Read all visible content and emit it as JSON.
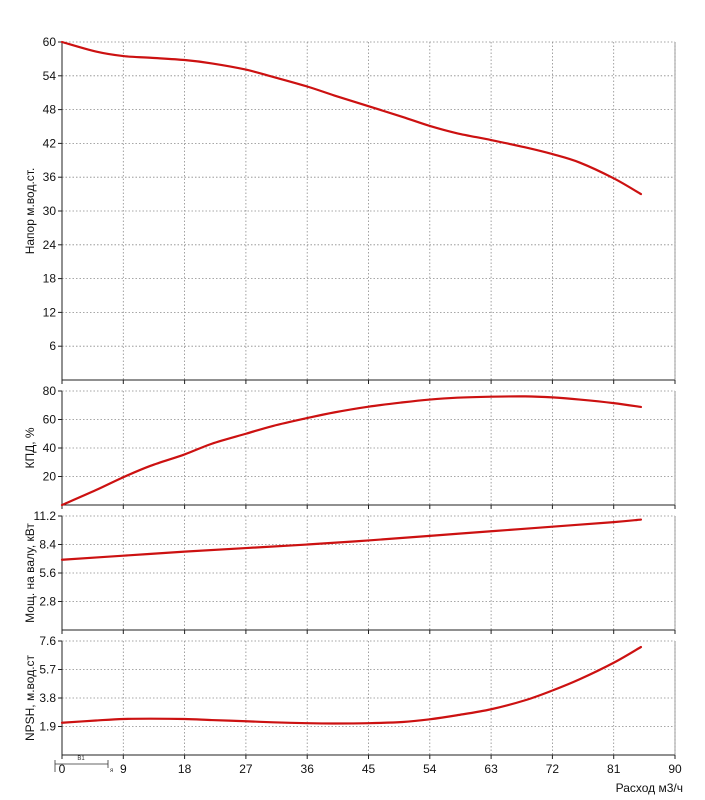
{
  "chart_data": [
    {
      "type": "line",
      "ylabel": "Напор м.вод.ст.",
      "xlabel": "",
      "xlim": [
        0,
        90
      ],
      "ylim": [
        0,
        60
      ],
      "yticks": [
        6,
        12,
        18,
        24,
        30,
        36,
        42,
        48,
        54,
        60
      ],
      "grid": true,
      "color": "#cc1111",
      "series": [
        {
          "x": [
            0,
            5,
            9,
            13,
            18,
            22,
            27,
            31,
            36,
            40,
            45,
            50,
            54,
            58,
            63,
            68,
            72,
            76,
            81,
            85
          ],
          "y": [
            60,
            58.3,
            57.5,
            57.2,
            56.8,
            56.2,
            55.1,
            53.8,
            52.1,
            50.5,
            48.6,
            46.7,
            45.1,
            43.8,
            42.6,
            41.3,
            40.1,
            38.6,
            35.8,
            33.0
          ]
        }
      ]
    },
    {
      "type": "line",
      "ylabel": "КПД, %",
      "xlabel": "",
      "xlim": [
        0,
        90
      ],
      "ylim": [
        0,
        80
      ],
      "yticks": [
        20,
        40,
        60,
        80
      ],
      "grid": true,
      "color": "#cc1111",
      "series": [
        {
          "x": [
            0,
            5,
            9,
            13,
            18,
            22,
            27,
            31,
            36,
            40,
            45,
            50,
            54,
            58,
            63,
            68,
            72,
            76,
            81,
            85
          ],
          "y": [
            0,
            10.5,
            19.5,
            27.5,
            35.5,
            43,
            50,
            55.5,
            61,
            65,
            69,
            72,
            74,
            75.3,
            76,
            76.2,
            75.5,
            74,
            71.5,
            68.8
          ]
        }
      ]
    },
    {
      "type": "line",
      "ylabel": "Мощ. на валу, кВт",
      "xlabel": "",
      "xlim": [
        0,
        90
      ],
      "ylim": [
        0,
        11.2
      ],
      "yticks": [
        2.8,
        5.6,
        8.4,
        11.2
      ],
      "grid": true,
      "color": "#cc1111",
      "series": [
        {
          "x": [
            0,
            9,
            18,
            27,
            36,
            45,
            54,
            63,
            72,
            81,
            85
          ],
          "y": [
            6.9,
            7.3,
            7.7,
            8.05,
            8.4,
            8.8,
            9.25,
            9.7,
            10.15,
            10.6,
            10.85
          ]
        }
      ]
    },
    {
      "type": "line",
      "ylabel": "NPSH, м.вод.ст",
      "xlabel": "Расход м3/ч",
      "xlim": [
        0,
        90
      ],
      "ylim": [
        0,
        7.6
      ],
      "yticks": [
        1.9,
        3.8,
        5.7,
        7.6
      ],
      "xticks": [
        0,
        9,
        18,
        27,
        36,
        45,
        54,
        63,
        72,
        81,
        90
      ],
      "grid": true,
      "color": "#cc1111",
      "series": [
        {
          "x": [
            0,
            5,
            9,
            13,
            18,
            22,
            27,
            31,
            36,
            40,
            45,
            50,
            54,
            58,
            63,
            68,
            72,
            76,
            81,
            85
          ],
          "y": [
            2.15,
            2.3,
            2.4,
            2.42,
            2.4,
            2.33,
            2.25,
            2.18,
            2.12,
            2.1,
            2.12,
            2.2,
            2.38,
            2.65,
            3.05,
            3.65,
            4.3,
            5.05,
            6.15,
            7.2
          ]
        }
      ]
    }
  ],
  "legend_marker": {
    "label": "B1",
    "sub": "я"
  }
}
